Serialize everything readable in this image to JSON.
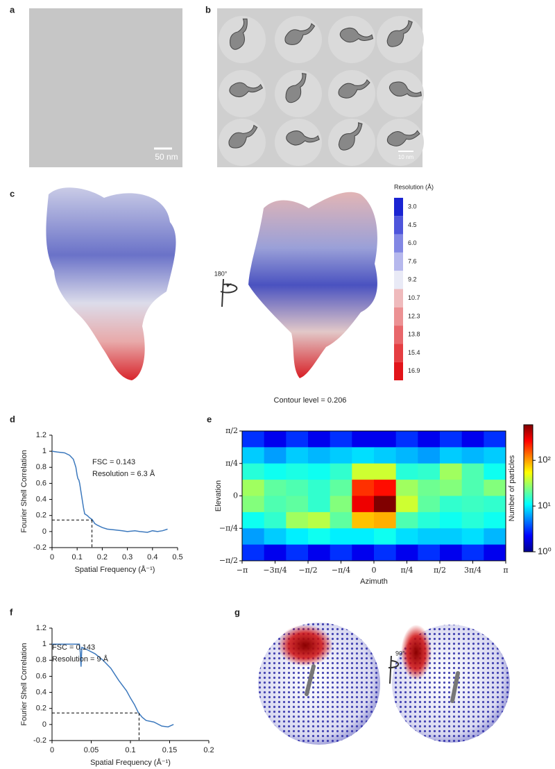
{
  "panel_labels": [
    "a",
    "b",
    "c",
    "d",
    "e",
    "f",
    "g"
  ],
  "panel_a": {
    "scale_bar": "50 nm"
  },
  "panel_b": {
    "scale_bar": "10 nm"
  },
  "panel_c": {
    "rotation": "180°",
    "colorbar_title": "Resolution (Å)",
    "colorbar_ticks": [
      {
        "value": 3.0,
        "label": "3.0"
      },
      {
        "value": 4.5,
        "label": "4.5"
      },
      {
        "value": 6.0,
        "label": "6.0"
      },
      {
        "value": 7.6,
        "label": "7.6"
      },
      {
        "value": 9.2,
        "label": "9.2"
      },
      {
        "value": 10.7,
        "label": "10.7"
      },
      {
        "value": 12.3,
        "label": "12.3"
      },
      {
        "value": 13.8,
        "label": "13.8"
      },
      {
        "value": 15.4,
        "label": "15.4"
      },
      {
        "value": 16.9,
        "label": "16.9"
      }
    ],
    "contour": "Contour level = 0.206"
  },
  "panel_g": {
    "rotation": "90°"
  },
  "chart_data": [
    {
      "type": "line",
      "xlabel": "Spatial Frequency (Å⁻¹)",
      "ylabel": "Fourier Shell Correlation",
      "annotations": [
        "FSC = 0.143",
        "Resolution = 6.3 Å"
      ],
      "color": "#3b78bd",
      "x": [
        0,
        0.02,
        0.05,
        0.07,
        0.085,
        0.095,
        0.1,
        0.103,
        0.107,
        0.11,
        0.115,
        0.12,
        0.125,
        0.13,
        0.14,
        0.15,
        0.16,
        0.17,
        0.18,
        0.2,
        0.22,
        0.25,
        0.28,
        0.3,
        0.33,
        0.35,
        0.38,
        0.4,
        0.42,
        0.44,
        0.46
      ],
      "values": [
        1,
        0.99,
        0.98,
        0.95,
        0.9,
        0.8,
        0.7,
        0.66,
        0.64,
        0.6,
        0.5,
        0.4,
        0.3,
        0.22,
        0.2,
        0.17,
        0.15,
        0.1,
        0.08,
        0.05,
        0.03,
        0.02,
        0.01,
        0,
        0.01,
        0,
        -0.01,
        0.01,
        0,
        0.01,
        0.03
      ],
      "xlim": [
        0,
        0.5
      ],
      "xticks": [
        0,
        0.1,
        0.2,
        0.3,
        0.4,
        0.5
      ],
      "ylim": [
        -0.2,
        1.2
      ],
      "yticks": [
        -0.2,
        0,
        0.2,
        0.4,
        0.6,
        0.8,
        1,
        1.2
      ],
      "reference_lines": {
        "x": 0.159,
        "y": 0.143
      }
    },
    {
      "type": "heatmap",
      "xlabel": "Azimuth",
      "ylabel": "Elevation",
      "colorbar_label": "Number of particles",
      "xlim": [
        -3.1416,
        3.1416
      ],
      "xticks": [
        {
          "value": -3.1416,
          "label": "−π"
        },
        {
          "value": -2.3562,
          "label": "−3π/4"
        },
        {
          "value": -1.5708,
          "label": "−π/2"
        },
        {
          "value": -0.7854,
          "label": "−π/4"
        },
        0,
        {
          "value": 0.7854,
          "label": "π/4"
        },
        {
          "value": 1.5708,
          "label": "π/2"
        },
        {
          "value": 2.3562,
          "label": "3π/4"
        },
        {
          "value": 3.1416,
          "label": "π"
        }
      ],
      "ylim": [
        -1.5708,
        1.5708
      ],
      "yticks": [
        {
          "value": -1.5708,
          "label": "−π/2"
        },
        {
          "value": -0.7854,
          "label": "−π/4"
        },
        0,
        {
          "value": 0.7854,
          "label": "π/4"
        },
        {
          "value": 1.5708,
          "label": "π/2"
        }
      ],
      "log_scale": true,
      "colorbar_lim": [
        1,
        600
      ],
      "colorbar_ticks": [
        {
          "value": 1,
          "label": "10⁰"
        },
        {
          "value": 10,
          "label": "10¹"
        },
        {
          "value": 100,
          "label": "10²"
        }
      ],
      "values": [
        [
          3,
          2,
          3,
          2,
          3,
          2,
          2,
          3,
          2,
          3,
          2,
          3
        ],
        [
          8,
          6,
          8,
          7,
          8,
          9,
          8,
          7,
          6,
          8,
          7,
          8
        ],
        [
          14,
          12,
          13,
          12,
          15,
          40,
          40,
          14,
          15,
          30,
          18,
          12
        ],
        [
          30,
          20,
          18,
          15,
          20,
          200,
          250,
          30,
          22,
          25,
          18,
          25
        ],
        [
          25,
          18,
          20,
          15,
          25,
          300,
          600,
          40,
          20,
          15,
          16,
          15
        ],
        [
          12,
          15,
          30,
          35,
          20,
          80,
          90,
          18,
          14,
          12,
          14,
          12
        ],
        [
          6,
          8,
          10,
          12,
          10,
          10,
          12,
          9,
          8,
          8,
          9,
          7
        ],
        [
          3,
          2,
          3,
          2,
          3,
          2,
          3,
          2,
          3,
          2,
          3,
          2
        ]
      ]
    },
    {
      "type": "line",
      "xlabel": "Spatial Frequency (Å⁻¹)",
      "ylabel": "Fourier Shell Correlation",
      "annotations": [
        "FSC = 0.143",
        "Resolution = 9 Å"
      ],
      "color": "#3b78bd",
      "x": [
        0,
        0.02,
        0.035,
        0.036,
        0.037,
        0.038,
        0.045,
        0.055,
        0.065,
        0.075,
        0.085,
        0.095,
        0.1,
        0.105,
        0.11,
        0.115,
        0.12,
        0.13,
        0.14,
        0.148,
        0.155
      ],
      "values": [
        1,
        1,
        1,
        0.9,
        0.72,
        0.96,
        0.93,
        0.88,
        0.8,
        0.7,
        0.55,
        0.42,
        0.33,
        0.25,
        0.15,
        0.09,
        0.05,
        0.03,
        -0.02,
        -0.03,
        0
      ],
      "xlim": [
        0,
        0.2
      ],
      "xticks": [
        0,
        0.05,
        0.1,
        0.15,
        0.2
      ],
      "ylim": [
        -0.2,
        1.2
      ],
      "yticks": [
        -0.2,
        0,
        0.2,
        0.4,
        0.6,
        0.8,
        1,
        1.2
      ],
      "reference_lines": {
        "x": 0.111,
        "y": 0.143
      }
    }
  ]
}
